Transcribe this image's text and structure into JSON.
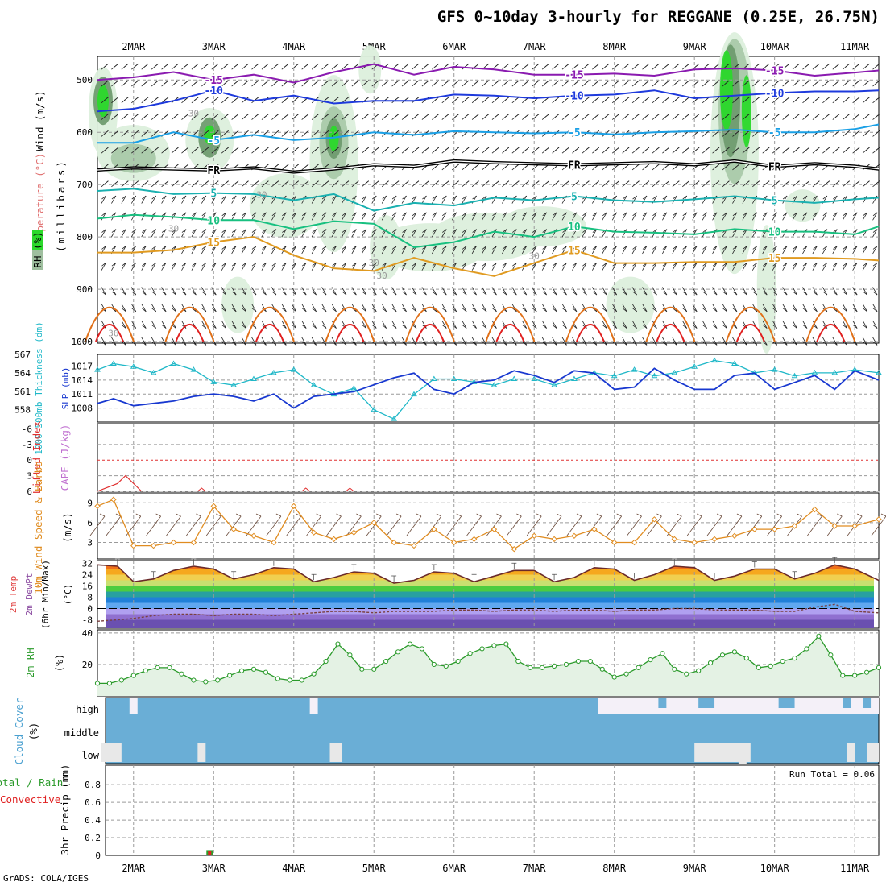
{
  "title": "GFS 0~10day 3-hourly for REGGANE (0.25E, 26.75N)",
  "footer": "GrADS: COLA/IGES",
  "days": [
    "2MAR",
    "3MAR",
    "4MAR",
    "5MAR",
    "6MAR",
    "7MAR",
    "8MAR",
    "9MAR",
    "10MAR",
    "11MAR"
  ],
  "colors": {
    "rh_light": "#dcefdc",
    "rh_mid": "#a9c9a9",
    "rh_dark": "#6f9b6f",
    "rh_bright": "#2bd92b",
    "temp_purple": "#8a1ab0",
    "temp_blue": "#1e3adc",
    "temp_cyan": "#1aa0e6",
    "temp_teal": "#1ab0b0",
    "temp_green": "#18c080",
    "temp_orange": "#e09a20",
    "temp_dark_orange": "#e07018",
    "temp_red": "#e02020",
    "thickness": "#20b8c8",
    "slp": "#1838d0",
    "lifted": "#e03030",
    "wind10": "#e08c20",
    "rh2m": "#2a9a2a",
    "cloud": "#6aaed6",
    "cloud_clear": "#f4f0f8",
    "precip_rain": "#2aa02a",
    "precip_conv": "#e02020"
  },
  "upper_panel": {
    "ylabel_wind": "Wind (m/s)",
    "ylabel_temp": "Temperature (°C)",
    "ylabel_rh": "RH (%)",
    "ylabel_unit": "(millibars)",
    "y_ticks": [
      500,
      600,
      700,
      800,
      900,
      1000
    ],
    "chart_data": {
      "type": "line",
      "description_of_isotherms": "pressure level (mb) of each isotherm across 3-hourly steps",
      "x_days": [
        1.55,
        2.0,
        2.5,
        3.0,
        3.5,
        4.0,
        4.5,
        5.0,
        5.5,
        6.0,
        6.5,
        7.0,
        7.5,
        8.0,
        8.5,
        9.0,
        9.5,
        10.0,
        10.5,
        11.0,
        11.3
      ],
      "isotherms": [
        {
          "label": "-15",
          "levels": [
            500,
            495,
            485,
            500,
            490,
            505,
            485,
            470,
            490,
            475,
            480,
            490,
            490,
            488,
            492,
            480,
            478,
            482,
            492,
            486,
            482
          ]
        },
        {
          "label": "-10",
          "levels": [
            560,
            555,
            540,
            520,
            540,
            530,
            545,
            540,
            540,
            528,
            530,
            535,
            530,
            528,
            520,
            535,
            530,
            525,
            522,
            522,
            520
          ]
        },
        {
          "label": "-5",
          "levels": [
            620,
            620,
            600,
            615,
            605,
            615,
            610,
            600,
            605,
            598,
            600,
            602,
            600,
            604,
            600,
            598,
            595,
            600,
            600,
            594,
            585
          ]
        },
        {
          "label": "FR",
          "levels": [
            672,
            668,
            670,
            672,
            668,
            676,
            670,
            662,
            665,
            655,
            658,
            660,
            662,
            660,
            658,
            662,
            655,
            665,
            660,
            665,
            670
          ]
        },
        {
          "label": "5",
          "levels": [
            712,
            708,
            718,
            716,
            718,
            730,
            718,
            750,
            735,
            740,
            725,
            730,
            722,
            730,
            733,
            728,
            722,
            730,
            735,
            728,
            725
          ]
        },
        {
          "label": "10",
          "levels": [
            765,
            758,
            762,
            768,
            768,
            785,
            770,
            775,
            820,
            810,
            790,
            800,
            780,
            790,
            792,
            795,
            785,
            790,
            790,
            795,
            780
          ]
        },
        {
          "label": "15",
          "levels": [
            830,
            830,
            825,
            810,
            800,
            835,
            860,
            865,
            840,
            860,
            875,
            850,
            825,
            850,
            850,
            848,
            848,
            840,
            840,
            842,
            845
          ]
        }
      ],
      "rh_labels": [
        "30",
        "30",
        "30",
        "30",
        "30",
        "30",
        "30"
      ]
    }
  },
  "thickness_panel": {
    "ylabel_left": "1000-500mb Thickness (dm)",
    "ylabel_right": "SLP (mb)",
    "left_ticks": [
      558,
      561,
      564,
      567
    ],
    "right_ticks": [
      1008,
      1011,
      1014,
      1017
    ],
    "chart_data": {
      "type": "line",
      "x_days": [
        1.55,
        1.75,
        2.0,
        2.25,
        2.5,
        2.75,
        3.0,
        3.25,
        3.5,
        3.75,
        4.0,
        4.25,
        4.5,
        4.75,
        5.0,
        5.25,
        5.5,
        5.75,
        6.0,
        6.25,
        6.5,
        6.75,
        7.0,
        7.25,
        7.5,
        7.75,
        8.0,
        8.25,
        8.5,
        8.75,
        9.0,
        9.25,
        9.5,
        9.75,
        10.0,
        10.25,
        10.5,
        10.75,
        11.0,
        11.3
      ],
      "series": [
        {
          "name": "1000-500mb Thickness",
          "unit": "dm",
          "values": [
            564.5,
            565.5,
            565.0,
            564.0,
            565.5,
            564.5,
            562.5,
            562.0,
            563.0,
            564.0,
            564.5,
            562.0,
            560.5,
            561.5,
            558.0,
            556.5,
            560.5,
            563.0,
            563.0,
            562.5,
            562.0,
            563.0,
            563.0,
            562.0,
            563.0,
            564.0,
            563.5,
            564.5,
            563.5,
            564.0,
            565.0,
            566.0,
            565.5,
            564.0,
            564.5,
            563.5,
            564.0,
            564.0,
            564.5,
            564.0
          ]
        },
        {
          "name": "SLP",
          "unit": "mb",
          "values": [
            1009.0,
            1010.0,
            1008.5,
            1009.0,
            1009.5,
            1010.5,
            1011.0,
            1010.5,
            1009.5,
            1011.0,
            1008.0,
            1010.5,
            1011.0,
            1011.5,
            1013.0,
            1014.5,
            1015.5,
            1012.0,
            1011.0,
            1013.5,
            1014.0,
            1016.0,
            1015.0,
            1013.5,
            1016.0,
            1015.5,
            1012.0,
            1012.5,
            1016.5,
            1014.0,
            1012.0,
            1012.0,
            1015.0,
            1015.5,
            1012.0,
            1013.5,
            1015.0,
            1012.0,
            1016.0,
            1014.0
          ]
        }
      ]
    }
  },
  "cape_panel": {
    "ylabel_left": "Lifted Index",
    "ylabel_right": "CAPE (J/kg)",
    "left_ticks": [
      "-6",
      "-3",
      "0",
      "3",
      "6"
    ],
    "chart_data": {
      "type": "line",
      "series": [
        {
          "name": "Lifted Index",
          "x_days": [
            1.55,
            1.8,
            1.9,
            2.0,
            2.1
          ],
          "values": [
            6,
            4.5,
            3,
            4.5,
            6
          ]
        }
      ]
    }
  },
  "wind10_panel": {
    "ylabel_left": "10m Wind Speed & Barbs",
    "ylabel_right": "(m/s)",
    "y_ticks": [
      3,
      6,
      9
    ],
    "chart_data": {
      "type": "line",
      "x_days": [
        1.55,
        1.75,
        2.0,
        2.25,
        2.5,
        2.75,
        3.0,
        3.25,
        3.5,
        3.75,
        4.0,
        4.25,
        4.5,
        4.75,
        5.0,
        5.25,
        5.5,
        5.75,
        6.0,
        6.25,
        6.5,
        6.75,
        7.0,
        7.25,
        7.5,
        7.75,
        8.0,
        8.25,
        8.5,
        8.75,
        9.0,
        9.25,
        9.5,
        9.75,
        10.0,
        10.25,
        10.5,
        10.75,
        11.0,
        11.3
      ],
      "series": [
        {
          "name": "10m Wind Speed",
          "values": [
            8.5,
            9.5,
            2.5,
            2.5,
            3,
            3,
            8.5,
            5,
            4,
            3,
            8.5,
            4.5,
            3.5,
            4.5,
            6,
            3,
            2.5,
            5,
            3,
            3.5,
            5,
            2,
            4,
            3.5,
            4,
            5,
            3,
            3,
            6.5,
            3.5,
            3,
            3.5,
            4,
            5,
            5,
            5.5,
            8,
            5.5,
            5.5,
            6.5
          ]
        }
      ]
    }
  },
  "temp2m_panel": {
    "ylabel_lines": [
      "2m Temp",
      "2m DewPt",
      "(6hr Min/Max)"
    ],
    "ylabel_right": "(°C)",
    "y_ticks": [
      "-8",
      "0",
      "8",
      "16",
      "24",
      "32"
    ],
    "chart_data": {
      "type": "area",
      "x_days": [
        1.55,
        1.8,
        2.0,
        2.25,
        2.5,
        2.75,
        3.0,
        3.25,
        3.5,
        3.75,
        4.0,
        4.25,
        4.5,
        4.75,
        5.0,
        5.25,
        5.5,
        5.75,
        6.0,
        6.25,
        6.5,
        6.75,
        7.0,
        7.25,
        7.5,
        7.75,
        8.0,
        8.25,
        8.5,
        8.75,
        9.0,
        9.25,
        9.5,
        9.75,
        10.0,
        10.25,
        10.5,
        10.75,
        11.0,
        11.3
      ],
      "series": [
        {
          "name": "2m Temp",
          "values": [
            31,
            30,
            19,
            21,
            27,
            30,
            28,
            21,
            24,
            29,
            28,
            19,
            22,
            26,
            25,
            18,
            20,
            26,
            25,
            19,
            23,
            27,
            27,
            19,
            22,
            29,
            28,
            20,
            24,
            30,
            29,
            20,
            23,
            28,
            28,
            21,
            25,
            31,
            28,
            20
          ]
        },
        {
          "name": "2m DewPt",
          "values": [
            -9,
            -8,
            -7,
            -5,
            -4,
            -4,
            -5,
            -4,
            -4,
            -5,
            -4,
            -3,
            -2,
            -2,
            -3,
            -2,
            -2,
            -2,
            -1,
            -1,
            -2,
            -1,
            -1,
            -2,
            -1,
            -1,
            -2,
            -1,
            -1,
            0,
            0,
            -1,
            -1,
            -1,
            -2,
            -2,
            1,
            3,
            -2,
            -3
          ]
        }
      ]
    }
  },
  "rh2m_panel": {
    "ylabel_left": "2m RH",
    "ylabel_right": "(%)",
    "y_ticks": [
      20,
      40
    ],
    "chart_data": {
      "type": "area",
      "x_days": [
        1.55,
        1.7,
        1.85,
        2.0,
        2.15,
        2.3,
        2.45,
        2.6,
        2.75,
        2.9,
        3.05,
        3.2,
        3.35,
        3.5,
        3.65,
        3.8,
        3.95,
        4.1,
        4.25,
        4.4,
        4.55,
        4.7,
        4.85,
        5.0,
        5.15,
        5.3,
        5.45,
        5.6,
        5.75,
        5.9,
        6.05,
        6.2,
        6.35,
        6.5,
        6.65,
        6.8,
        6.95,
        7.1,
        7.25,
        7.4,
        7.55,
        7.7,
        7.85,
        8.0,
        8.15,
        8.3,
        8.45,
        8.6,
        8.75,
        8.9,
        9.05,
        9.2,
        9.35,
        9.5,
        9.65,
        9.8,
        9.95,
        10.1,
        10.25,
        10.4,
        10.55,
        10.7,
        10.85,
        11.0,
        11.15,
        11.3
      ],
      "series": [
        {
          "name": "2m RH",
          "values": [
            8,
            8,
            10,
            13,
            16,
            18,
            18,
            14,
            10,
            9,
            10,
            13,
            16,
            17,
            15,
            11,
            10,
            10,
            14,
            22,
            33,
            26,
            17,
            17,
            22,
            28,
            33,
            30,
            20,
            19,
            22,
            27,
            30,
            32,
            33,
            22,
            18,
            18,
            19,
            20,
            22,
            22,
            17,
            12,
            14,
            18,
            23,
            27,
            17,
            14,
            16,
            21,
            26,
            28,
            24,
            18,
            19,
            22,
            24,
            30,
            38,
            26,
            13,
            13,
            15,
            18
          ]
        }
      ]
    }
  },
  "cloud_panel": {
    "ylabel_left": "Cloud Cover",
    "ylabel_right": "(%)",
    "rows": [
      "high",
      "middle",
      "low"
    ]
  },
  "precip_panel": {
    "ylabel_left_lines": [
      "Total / Rain",
      "Convective"
    ],
    "ylabel_right": "3hr Precip (mm)",
    "y_ticks": [
      "0",
      "0.2",
      "0.4",
      "0.6",
      "0.8"
    ],
    "run_total_label": "Run Total = 0.06",
    "chart_data": {
      "type": "bar",
      "series": [
        {
          "name": "3hr Precip",
          "x_days": [
            2.95
          ],
          "values": [
            0.06
          ]
        }
      ]
    }
  }
}
